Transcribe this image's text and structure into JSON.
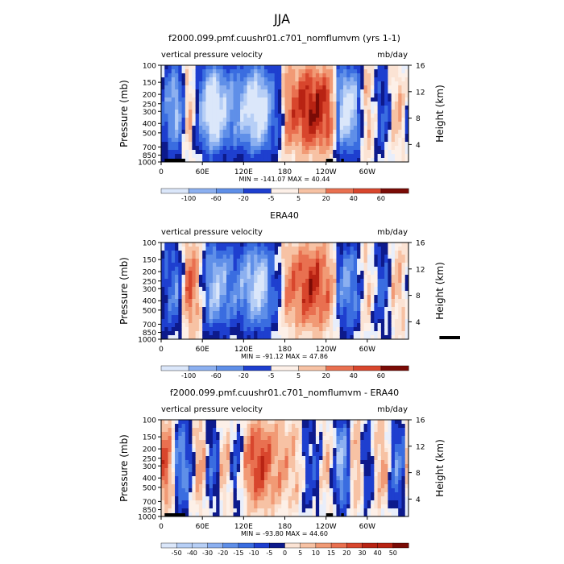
{
  "page_title": "JJA",
  "colors": {
    "neg": [
      "#0d1a8c",
      "#1e3fcf",
      "#3a6de0",
      "#5f8fe8",
      "#8cb0f0",
      "#b7cff6",
      "#dbe7fa"
    ],
    "pos": [
      "#fbe3d4",
      "#f7c2a4",
      "#f19a75",
      "#e97050",
      "#d8462d",
      "#b82313",
      "#7a0b06"
    ],
    "topo": "#000000"
  },
  "chart_data": [
    {
      "type": "heatmap",
      "title": "f2000.099.pmf.cuushr01.c701_nomflumvm (yrs 1-1)",
      "left_label": "vertical pressure velocity",
      "units_label": "mb/day",
      "ylabel": "Pressure (mb)",
      "y2label": "Height (km)",
      "xticks": [
        "0",
        "60E",
        "120E",
        "180",
        "120W",
        "60W"
      ],
      "xtick_values": [
        0,
        60,
        120,
        180,
        240,
        300
      ],
      "xlim": [
        0,
        360
      ],
      "yticks": [
        "100",
        "150",
        "200",
        "250",
        "300",
        "400",
        "500",
        "700",
        "850",
        "1000"
      ],
      "ytick_values": [
        100,
        150,
        200,
        250,
        300,
        400,
        500,
        700,
        850,
        1000
      ],
      "ylim": [
        100,
        1000
      ],
      "y_scale": "log",
      "y2ticks": [
        "16",
        "12",
        "8",
        "4"
      ],
      "minmax": "MIN = -141.07   MAX =  40.44",
      "colorbar_labels": [
        "-100",
        "-60",
        "-20",
        "-5",
        "5",
        "20",
        "40",
        "60"
      ],
      "structure": [
        {
          "lon": 10,
          "v": -0.3
        },
        {
          "lon": 25,
          "v": -0.9
        },
        {
          "lon": 40,
          "v": 0.6
        },
        {
          "lon": 55,
          "v": -0.5
        },
        {
          "lon": 75,
          "v": -1.0
        },
        {
          "lon": 95,
          "v": -0.6
        },
        {
          "lon": 110,
          "v": -0.4
        },
        {
          "lon": 125,
          "v": -0.8
        },
        {
          "lon": 145,
          "v": -0.9
        },
        {
          "lon": 165,
          "v": -0.3
        },
        {
          "lon": 190,
          "v": 0.5
        },
        {
          "lon": 220,
          "v": 0.7
        },
        {
          "lon": 245,
          "v": 0.6
        },
        {
          "lon": 265,
          "v": -0.9
        },
        {
          "lon": 280,
          "v": -0.7
        },
        {
          "lon": 300,
          "v": 0.3
        },
        {
          "lon": 320,
          "v": -0.3
        },
        {
          "lon": 345,
          "v": 0.2
        }
      ]
    },
    {
      "type": "heatmap",
      "title": "ERA40",
      "left_label": "vertical pressure velocity",
      "units_label": "mb/day",
      "ylabel": "Pressure (mb)",
      "y2label": "Height (km)",
      "xticks": [
        "0",
        "60E",
        "120E",
        "180",
        "120W",
        "60W"
      ],
      "xtick_values": [
        0,
        60,
        120,
        180,
        240,
        300
      ],
      "xlim": [
        0,
        360
      ],
      "yticks": [
        "100",
        "150",
        "200",
        "250",
        "300",
        "400",
        "500",
        "700",
        "850",
        "1000"
      ],
      "ytick_values": [
        100,
        150,
        200,
        250,
        300,
        400,
        500,
        700,
        850,
        1000
      ],
      "ylim": [
        100,
        1000
      ],
      "y_scale": "log",
      "y2ticks": [
        "16",
        "12",
        "8",
        "4"
      ],
      "minmax": "MIN = -91.12   MAX =  47.86",
      "colorbar_labels": [
        "-100",
        "-60",
        "-20",
        "-5",
        "5",
        "20",
        "40",
        "60"
      ],
      "structure": [
        {
          "lon": 10,
          "v": -0.2
        },
        {
          "lon": 25,
          "v": -0.6
        },
        {
          "lon": 40,
          "v": 0.8
        },
        {
          "lon": 55,
          "v": 0.1
        },
        {
          "lon": 75,
          "v": -0.7
        },
        {
          "lon": 95,
          "v": -0.5
        },
        {
          "lon": 110,
          "v": -0.3
        },
        {
          "lon": 125,
          "v": -0.6
        },
        {
          "lon": 145,
          "v": -0.8
        },
        {
          "lon": 165,
          "v": -0.2
        },
        {
          "lon": 190,
          "v": 0.4
        },
        {
          "lon": 220,
          "v": 0.6
        },
        {
          "lon": 245,
          "v": 0.4
        },
        {
          "lon": 265,
          "v": -0.5
        },
        {
          "lon": 280,
          "v": -0.4
        },
        {
          "lon": 300,
          "v": 0.2
        },
        {
          "lon": 320,
          "v": -0.3
        },
        {
          "lon": 345,
          "v": 0.2
        }
      ]
    },
    {
      "type": "heatmap",
      "title": "f2000.099.pmf.cuushr01.c701_nomflumvm - ERA40",
      "left_label": "vertical pressure velocity",
      "units_label": "mb/day",
      "ylabel": "Pressure (mb)",
      "y2label": "Height (km)",
      "xticks": [
        "0",
        "60E",
        "120E",
        "180",
        "120W",
        "60W"
      ],
      "xtick_values": [
        0,
        60,
        120,
        180,
        240,
        300
      ],
      "xlim": [
        0,
        360
      ],
      "yticks": [
        "100",
        "150",
        "200",
        "250",
        "300",
        "400",
        "500",
        "700",
        "850",
        "1000"
      ],
      "ytick_values": [
        100,
        150,
        200,
        250,
        300,
        400,
        500,
        700,
        850,
        1000
      ],
      "ylim": [
        100,
        1000
      ],
      "y_scale": "log",
      "y2ticks": [
        "16",
        "12",
        "8",
        "4"
      ],
      "minmax": "MIN = -93.80   MAX =  44.60",
      "colorbar_labels": [
        "-50",
        "-40",
        "-30",
        "-20",
        "-15",
        "-10",
        "-5",
        "0",
        "5",
        "10",
        "15",
        "20",
        "30",
        "40",
        "50"
      ],
      "structure": [
        {
          "lon": 10,
          "v": 0.7
        },
        {
          "lon": 25,
          "v": -0.6
        },
        {
          "lon": 40,
          "v": -0.4
        },
        {
          "lon": 55,
          "v": 0.5
        },
        {
          "lon": 75,
          "v": -0.4
        },
        {
          "lon": 95,
          "v": 0.4
        },
        {
          "lon": 110,
          "v": -0.5
        },
        {
          "lon": 125,
          "v": 0.5
        },
        {
          "lon": 145,
          "v": 0.6
        },
        {
          "lon": 165,
          "v": 0.3
        },
        {
          "lon": 190,
          "v": 0.2
        },
        {
          "lon": 220,
          "v": -0.2
        },
        {
          "lon": 245,
          "v": 0.2
        },
        {
          "lon": 265,
          "v": -0.9
        },
        {
          "lon": 280,
          "v": 0.5
        },
        {
          "lon": 300,
          "v": -0.3
        },
        {
          "lon": 320,
          "v": 0.3
        },
        {
          "lon": 345,
          "v": -0.4
        }
      ]
    }
  ]
}
